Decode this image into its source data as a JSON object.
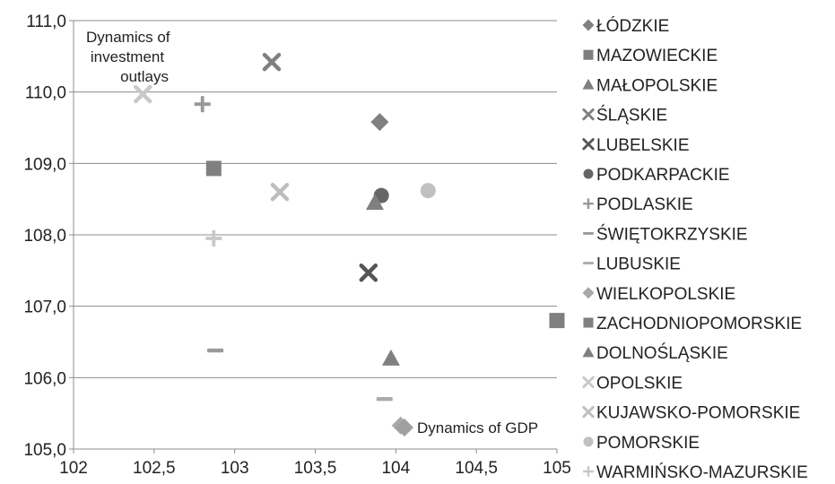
{
  "chart_data": {
    "type": "scatter",
    "title": "",
    "xlabel": "",
    "ylabel": "",
    "xlim": [
      102,
      105
    ],
    "ylim": [
      105.0,
      111.0
    ],
    "grid": "horizontal",
    "legend_placement": "right",
    "x_ticks": [
      "102",
      "102,5",
      "103",
      "103,5",
      "104",
      "104,5",
      "105"
    ],
    "y_ticks": [
      "105,0",
      "106,0",
      "107,0",
      "108,0",
      "109,0",
      "110,0",
      "111,0"
    ],
    "x_tick_values": [
      102,
      102.5,
      103,
      103.5,
      104,
      104.5,
      105
    ],
    "y_tick_values": [
      105,
      106,
      107,
      108,
      109,
      110,
      111
    ],
    "annotations": {
      "y_axis_title": [
        "Dynamics of",
        "investment",
        "outlays"
      ],
      "x_axis_title": "Dynamics of GDP"
    },
    "series": [
      {
        "name": "ŁÓDZKIE",
        "marker": "diamond",
        "color": "#808080",
        "points": [
          {
            "x": 103.9,
            "y": 109.58
          }
        ]
      },
      {
        "name": "MAZOWIECKIE",
        "marker": "square",
        "color": "#7f7f7f",
        "points": [
          {
            "x": 105.0,
            "y": 106.8
          }
        ]
      },
      {
        "name": "MAŁOPOLSKIE",
        "marker": "triangle",
        "color": "#808080",
        "points": [
          {
            "x": 103.97,
            "y": 106.27
          }
        ]
      },
      {
        "name": "ŚLĄSKIE",
        "marker": "x",
        "color": "#808080",
        "points": [
          {
            "x": 103.23,
            "y": 110.42
          }
        ]
      },
      {
        "name": "LUBELSKIE",
        "marker": "x",
        "color": "#555555",
        "points": [
          {
            "x": 103.83,
            "y": 107.47
          }
        ]
      },
      {
        "name": "PODKARPACKIE",
        "marker": "circle",
        "color": "#666666",
        "points": [
          {
            "x": 103.91,
            "y": 108.55
          }
        ]
      },
      {
        "name": "PODLASKIE",
        "marker": "plus",
        "color": "#999999",
        "points": [
          {
            "x": 102.8,
            "y": 109.83
          }
        ]
      },
      {
        "name": "ŚWIĘTOKRZYSKIE",
        "marker": "dash",
        "color": "#999999",
        "points": [
          {
            "x": 102.88,
            "y": 106.38
          }
        ]
      },
      {
        "name": "LUBUSKIE",
        "marker": "dash",
        "color": "#aaaaaa",
        "points": [
          {
            "x": 103.93,
            "y": 105.7
          }
        ]
      },
      {
        "name": "WIELKOPOLSKIE",
        "marker": "diamond",
        "color": "#a8a8a8",
        "points": [
          {
            "x": 104.03,
            "y": 105.33
          }
        ]
      },
      {
        "name": "ZACHODNIOPOMORSKIE",
        "marker": "square",
        "color": "#808080",
        "points": [
          {
            "x": 102.87,
            "y": 108.93
          }
        ]
      },
      {
        "name": "DOLNOŚLĄSKIE",
        "marker": "triangle",
        "color": "#7f7f7f",
        "points": [
          {
            "x": 103.87,
            "y": 108.45
          }
        ]
      },
      {
        "name": "OPOLSKIE",
        "marker": "x",
        "color": "#c8c8c8",
        "points": [
          {
            "x": 102.43,
            "y": 109.97
          }
        ]
      },
      {
        "name": "KUJAWSKO-POMORSKIE",
        "marker": "x",
        "color": "#bebebe",
        "points": [
          {
            "x": 103.28,
            "y": 108.6
          }
        ]
      },
      {
        "name": "POMORSKIE",
        "marker": "circle",
        "color": "#c0c0c0",
        "points": [
          {
            "x": 104.2,
            "y": 108.62
          }
        ]
      },
      {
        "name": "WARMIŃSKO-MAZURSKIE",
        "marker": "plus",
        "color": "#c8c8c8",
        "points": [
          {
            "x": 102.87,
            "y": 107.95
          }
        ]
      }
    ]
  }
}
